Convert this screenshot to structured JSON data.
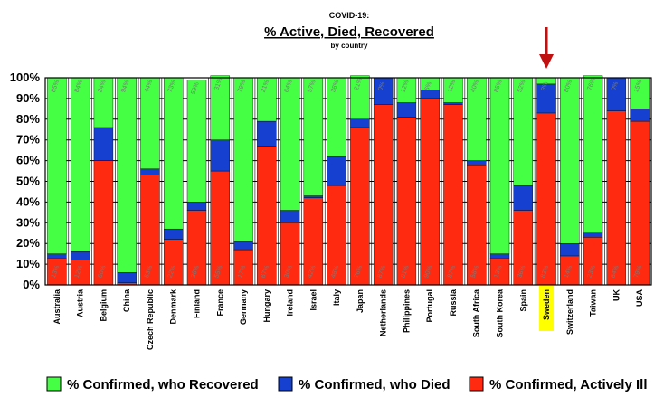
{
  "chart_data": {
    "type": "bar",
    "stacked": true,
    "title": "% Active, Died, Recovered",
    "pretitle": "COVID-19:",
    "subtitle": "by country",
    "xlabel": "",
    "ylabel": "",
    "ylim": [
      0,
      100
    ],
    "ytick_labels": [
      "0%",
      "10%",
      "20%",
      "30%",
      "40%",
      "50%",
      "60%",
      "70%",
      "80%",
      "90%",
      "100%"
    ],
    "grid": true,
    "legend_position": "bottom",
    "highlight_category": "Sweden",
    "categories": [
      "Australia",
      "Austria",
      "Belgium",
      "China",
      "Czech Republic",
      "Denmark",
      "Finland",
      "France",
      "Germany",
      "Hungary",
      "Ireland",
      "Israel",
      "Italy",
      "Japan",
      "Netherlands",
      "Philippines",
      "Portugal",
      "Russia",
      "South Africa",
      "South Korea",
      "Spain",
      "Sweden",
      "Switzerland",
      "Taiwan",
      "UK",
      "USA"
    ],
    "series": [
      {
        "name": "% Confirmed, Actively Ill",
        "color": "#ff2a10",
        "values": [
          13,
          12,
          60,
          1,
          53,
          22,
          36,
          55,
          17,
          67,
          30,
          42,
          48,
          76,
          87,
          81,
          90,
          87,
          58,
          13,
          36,
          83,
          14,
          23,
          84,
          79
        ]
      },
      {
        "name": "% Confirmed, who Died",
        "color": "#1540d0",
        "values": [
          2,
          4,
          16,
          5,
          3,
          5,
          4,
          15,
          4,
          12,
          6,
          1,
          14,
          4,
          13,
          7,
          4,
          1,
          2,
          2,
          12,
          14,
          6,
          2,
          16,
          6
        ]
      },
      {
        "name": "% Confirmed, who Recovered",
        "color": "#44ff44",
        "values": [
          85,
          84,
          24,
          94,
          44,
          73,
          59,
          31,
          79,
          21,
          64,
          57,
          38,
          21,
          0,
          12,
          6,
          12,
          40,
          85,
          52,
          3,
          80,
          76,
          0,
          15
        ]
      }
    ],
    "data_labels": {
      "recovered": [
        "85%",
        "84%",
        "24%",
        "94%",
        "44%",
        "73%",
        "59%",
        "31%",
        "79%",
        "21%",
        "64%",
        "57%",
        "38%",
        "21%",
        "0%",
        "12%",
        "6%",
        "12%",
        "40%",
        "85%",
        "52%",
        "3%",
        "80%",
        "76%",
        "0%",
        "15%"
      ],
      "ill": [
        "13%",
        "12%",
        "60%",
        "",
        "53%",
        "22%",
        "36%",
        "55%",
        "17%",
        "67%",
        "30%",
        "42%",
        "48%",
        "76%",
        "87%",
        "81%",
        "90%",
        "87%",
        "58%",
        "13%",
        "36%",
        "83%",
        "14%",
        "23%",
        "84%",
        "79%"
      ]
    }
  },
  "colors": {
    "recovered": "#44ff44",
    "died": "#1540d0",
    "ill": "#ff2a10",
    "highlight": "#ffff00",
    "arrow": "#c01010"
  }
}
